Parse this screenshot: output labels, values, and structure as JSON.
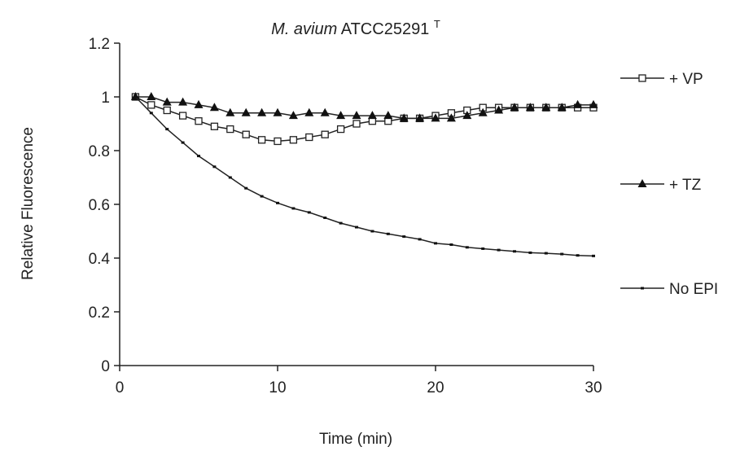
{
  "chart_data": {
    "type": "line",
    "title_italic": "M. avium",
    "title_rest": "ATCC25291",
    "title_superscript": "T",
    "xlabel": "Time (min)",
    "ylabel": "Relative Fluorescence",
    "xlim": [
      0,
      30
    ],
    "ylim": [
      0,
      1.2
    ],
    "xticks": [
      "0",
      "10",
      "20",
      "30"
    ],
    "yticks": [
      "0",
      "0.2",
      "0.4",
      "0.6",
      "0.8",
      "1",
      "1.2"
    ],
    "grid": false,
    "legend_placement": "right",
    "series": [
      {
        "name": "+ VP",
        "marker": "square-open",
        "x": [
          1,
          2,
          3,
          4,
          5,
          6,
          7,
          8,
          9,
          10,
          11,
          12,
          13,
          14,
          15,
          16,
          17,
          18,
          19,
          20,
          21,
          22,
          23,
          24,
          25,
          26,
          27,
          28,
          29,
          30
        ],
        "y": [
          1.0,
          0.97,
          0.95,
          0.93,
          0.91,
          0.89,
          0.88,
          0.86,
          0.84,
          0.835,
          0.84,
          0.85,
          0.86,
          0.88,
          0.9,
          0.91,
          0.91,
          0.92,
          0.92,
          0.93,
          0.94,
          0.95,
          0.96,
          0.96,
          0.96,
          0.96,
          0.96,
          0.96,
          0.96,
          0.96
        ]
      },
      {
        "name": "+ TZ",
        "marker": "triangle-filled",
        "x": [
          1,
          2,
          3,
          4,
          5,
          6,
          7,
          8,
          9,
          10,
          11,
          12,
          13,
          14,
          15,
          16,
          17,
          18,
          19,
          20,
          21,
          22,
          23,
          24,
          25,
          26,
          27,
          28,
          29,
          30
        ],
        "y": [
          1.0,
          1.0,
          0.98,
          0.98,
          0.97,
          0.96,
          0.94,
          0.94,
          0.94,
          0.94,
          0.93,
          0.94,
          0.94,
          0.93,
          0.93,
          0.93,
          0.93,
          0.92,
          0.92,
          0.92,
          0.92,
          0.93,
          0.94,
          0.95,
          0.96,
          0.96,
          0.96,
          0.96,
          0.97,
          0.97
        ]
      },
      {
        "name": "No EPI",
        "marker": "dash",
        "x": [
          1,
          2,
          3,
          4,
          5,
          6,
          7,
          8,
          9,
          10,
          11,
          12,
          13,
          14,
          15,
          16,
          17,
          18,
          19,
          20,
          21,
          22,
          23,
          24,
          25,
          26,
          27,
          28,
          29,
          30
        ],
        "y": [
          1.0,
          0.94,
          0.88,
          0.83,
          0.78,
          0.74,
          0.7,
          0.66,
          0.63,
          0.605,
          0.585,
          0.57,
          0.55,
          0.53,
          0.515,
          0.5,
          0.49,
          0.48,
          0.47,
          0.455,
          0.45,
          0.44,
          0.435,
          0.43,
          0.425,
          0.42,
          0.418,
          0.415,
          0.41,
          0.408
        ]
      }
    ]
  }
}
